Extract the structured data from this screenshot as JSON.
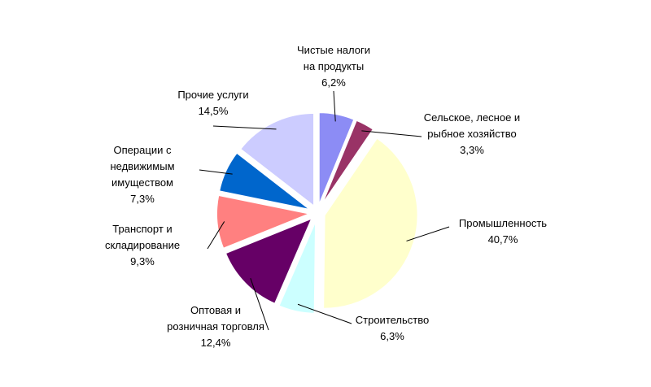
{
  "chart_data": {
    "type": "pie",
    "categories": [
      "Чистые налоги\nна продукты",
      "Сельское, лесное и\nрыбное хозяйство",
      "Промышленность",
      "Строительство",
      "Оптовая и\nрозничная торговля",
      "Транспорт и\nскладирование",
      "Операции с\nнедвижимым\nимуществом",
      "Прочие услуги"
    ],
    "values": [
      6.2,
      3.3,
      40.7,
      6.3,
      12.4,
      9.3,
      7.3,
      14.5
    ],
    "value_labels": [
      "6,2%",
      "3,3%",
      "40,7%",
      "6,3%",
      "12,4%",
      "9,3%",
      "7,3%",
      "14,5%"
    ],
    "colors": [
      "#8c8cf5",
      "#993366",
      "#ffffcc",
      "#ccffff",
      "#660066",
      "#ff8080",
      "#0066cc",
      "#ccccff"
    ]
  }
}
